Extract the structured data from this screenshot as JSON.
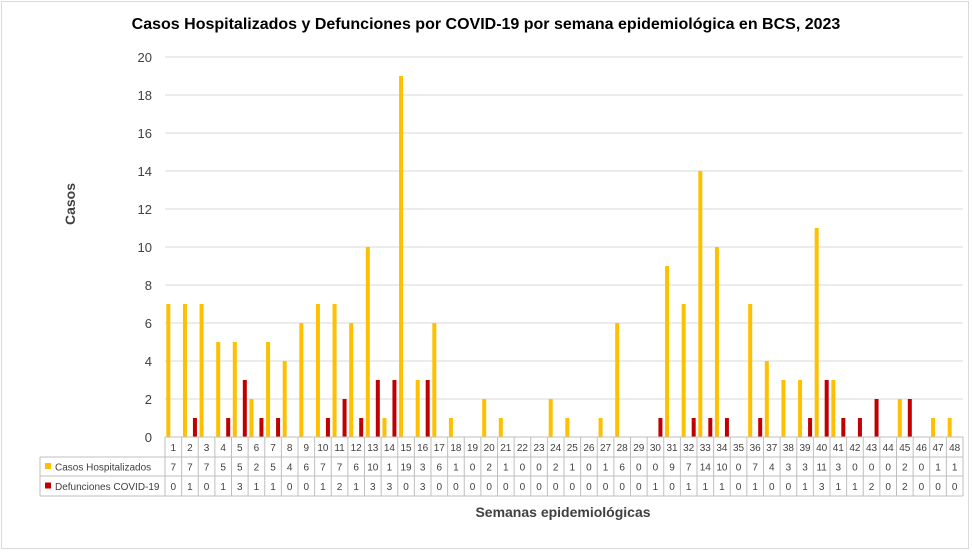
{
  "chart_data": {
    "type": "bar",
    "title": "Casos Hospitalizados y Defunciones por COVID-19 por semana epidemiológica en BCS, 2023",
    "xlabel": "Semanas epidemiológicas",
    "ylabel": "Casos",
    "ylim": [
      0,
      20
    ],
    "yticks": [
      0,
      2,
      4,
      6,
      8,
      10,
      12,
      14,
      16,
      18,
      20
    ],
    "grid": true,
    "legend_position": "data-table-left",
    "categories": [
      "1",
      "2",
      "3",
      "4",
      "5",
      "6",
      "7",
      "8",
      "9",
      "10",
      "11",
      "12",
      "13",
      "14",
      "15",
      "16",
      "17",
      "18",
      "19",
      "20",
      "21",
      "22",
      "23",
      "24",
      "25",
      "26",
      "27",
      "28",
      "29",
      "30",
      "31",
      "32",
      "33",
      "34",
      "35",
      "36",
      "37",
      "38",
      "39",
      "40",
      "41",
      "42",
      "43",
      "44",
      "45",
      "46",
      "47",
      "48"
    ],
    "series": [
      {
        "name": "Casos Hospitalizados",
        "color": "#FFC000",
        "values": [
          7,
          7,
          7,
          5,
          5,
          2,
          5,
          4,
          6,
          7,
          7,
          6,
          10,
          1,
          19,
          3,
          6,
          1,
          0,
          2,
          1,
          0,
          0,
          2,
          1,
          0,
          1,
          6,
          0,
          0,
          9,
          7,
          14,
          10,
          0,
          7,
          4,
          3,
          3,
          11,
          3,
          0,
          0,
          0,
          2,
          0,
          1,
          1
        ]
      },
      {
        "name": "Defunciones COVID-19",
        "color": "#C00000",
        "values": [
          0,
          1,
          0,
          1,
          3,
          1,
          1,
          0,
          0,
          1,
          2,
          1,
          3,
          3,
          0,
          3,
          0,
          0,
          0,
          0,
          0,
          0,
          0,
          0,
          0,
          0,
          0,
          0,
          0,
          1,
          0,
          1,
          1,
          1,
          0,
          1,
          0,
          0,
          1,
          3,
          1,
          1,
          2,
          0,
          2,
          0,
          0,
          0
        ]
      }
    ]
  }
}
